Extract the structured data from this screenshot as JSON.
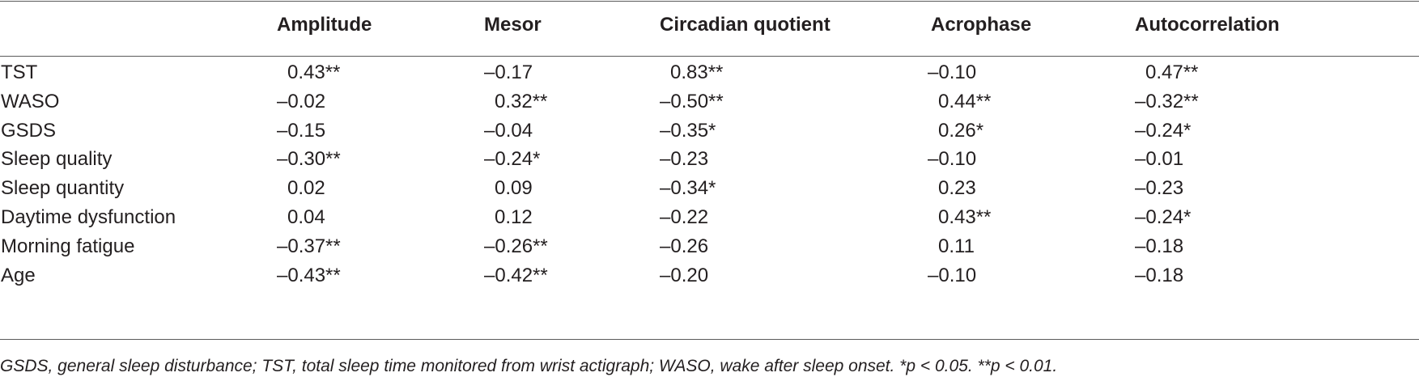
{
  "table": {
    "headers": [
      "",
      "Amplitude",
      "Mesor",
      "Circadian quotient",
      "Acrophase",
      "Autocorrelation"
    ],
    "rows": [
      {
        "label": "TST",
        "values": [
          " 0.43**",
          "–0.17",
          " 0.83**",
          "–0.10",
          " 0.47**"
        ]
      },
      {
        "label": "WASO",
        "values": [
          "–0.02",
          " 0.32**",
          "–0.50**",
          " 0.44**",
          "–0.32**"
        ]
      },
      {
        "label": "GSDS",
        "values": [
          "–0.15",
          "–0.04",
          "–0.35*",
          " 0.26*",
          "–0.24*"
        ]
      },
      {
        "label": "Sleep quality",
        "values": [
          "–0.30**",
          "–0.24*",
          "–0.23",
          "–0.10",
          "–0.01"
        ]
      },
      {
        "label": "Sleep quantity",
        "values": [
          " 0.02",
          " 0.09",
          "–0.34*",
          " 0.23",
          "–0.23"
        ]
      },
      {
        "label": "Daytime dysfunction",
        "values": [
          " 0.04",
          " 0.12",
          "–0.22",
          " 0.43**",
          "–0.24*"
        ]
      },
      {
        "label": "Morning fatigue",
        "values": [
          "–0.37**",
          "–0.26**",
          "–0.26",
          " 0.11",
          "–0.18"
        ]
      },
      {
        "label": "Age",
        "values": [
          "–0.43**",
          "–0.42**",
          "–0.20",
          "–0.10",
          "–0.18"
        ]
      }
    ]
  },
  "footnote": "GSDS, general sleep disturbance; TST, total sleep time monitored from wrist actigraph; WASO, wake after sleep onset. *p < 0.05. **p < 0.01."
}
